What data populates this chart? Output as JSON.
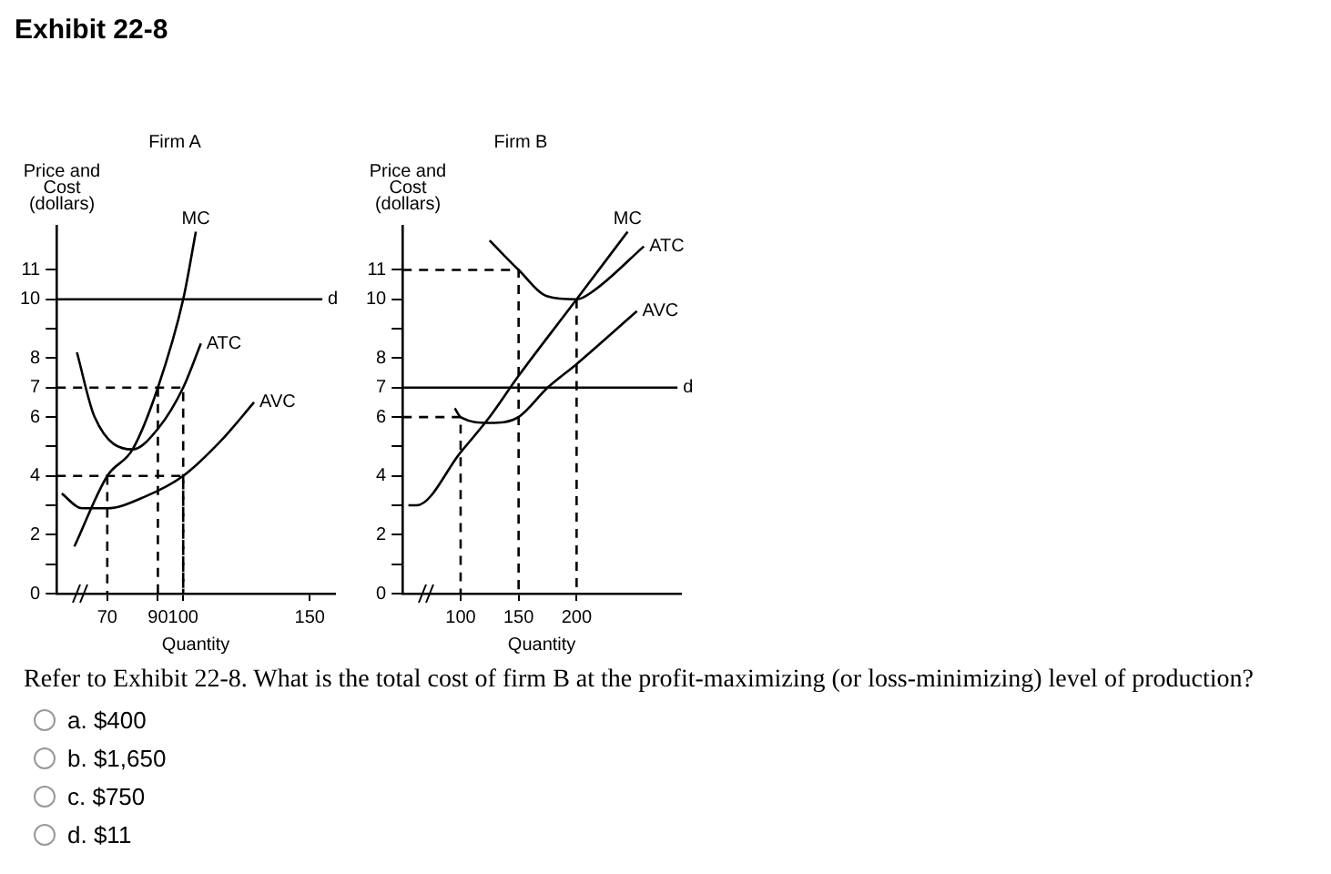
{
  "chart_data": [
    {
      "type": "line",
      "title": "Firm A",
      "xlabel": "Quantity",
      "ylabel": "Price and Cost (dollars)",
      "marker": "none",
      "annotations": [
        "Exhibit 22-8"
      ],
      "xlim": [
        50,
        160
      ],
      "xticks": [
        70,
        90,
        100,
        150
      ],
      "ylim": [
        0,
        12.5
      ],
      "yticks": [
        0,
        {
          "value": 1,
          "label": null
        },
        2,
        {
          "value": 3,
          "label": null
        },
        4,
        {
          "value": 5,
          "label": null
        },
        6,
        7,
        8,
        {
          "value": 9,
          "label": null
        },
        10,
        11
      ],
      "series": [
        {
          "name": "MC",
          "color": "#000000",
          "x": [
            57,
            70,
            80,
            90,
            100,
            105
          ],
          "values": [
            1.6,
            4,
            4.9,
            7,
            10,
            12.3
          ]
        },
        {
          "name": "ATC",
          "color": "#000000",
          "x": [
            58,
            65,
            80,
            90,
            100,
            107
          ],
          "values": [
            8.2,
            6,
            4.9,
            5.6,
            7,
            8.5
          ]
        },
        {
          "name": "AVC",
          "color": "#000000",
          "x": [
            52,
            60,
            70,
            85,
            100,
            115,
            128
          ],
          "values": [
            3.4,
            2.9,
            2.9,
            3.3,
            4,
            5.2,
            6.5
          ]
        },
        {
          "name": "d",
          "color": "#000000",
          "x": [
            50,
            155
          ],
          "values": [
            10,
            10
          ]
        },
        {
          "color": "#000000",
          "line_style": "dashed",
          "x": [
            50,
            100,
            100
          ],
          "values": [
            7,
            7,
            0
          ]
        },
        {
          "color": "#000000",
          "line_style": "dashed",
          "x": [
            50,
            100,
            100
          ],
          "values": [
            4,
            4,
            0
          ]
        },
        {
          "color": "#000000",
          "line_style": "dashed",
          "x": [
            70,
            70
          ],
          "values": [
            4,
            0
          ]
        },
        {
          "color": "#000000",
          "line_style": "dashed",
          "x": [
            90,
            90
          ],
          "values": [
            7,
            0
          ]
        }
      ]
    },
    {
      "type": "line",
      "title": "Firm B",
      "xlabel": "Quantity",
      "ylabel": "Price and Cost (dollars)",
      "marker": "none",
      "annotations": [
        "Refer to Exhibit 22-8. What is the total cost of firm B at the profit-maximizing (or loss-minimizing) level of production?",
        "a. $400",
        "b. $1,650",
        "c. $750",
        "d. $11"
      ],
      "xlim": [
        50,
        290
      ],
      "xticks": [
        100,
        150,
        200
      ],
      "ylim": [
        0,
        12.5
      ],
      "yticks": [
        0,
        {
          "value": 1,
          "label": null
        },
        2,
        {
          "value": 3,
          "label": null
        },
        4,
        {
          "value": 5,
          "label": null
        },
        6,
        7,
        8,
        {
          "value": 9,
          "label": null
        },
        10,
        11
      ],
      "series": [
        {
          "name": "MC",
          "color": "#000000",
          "x": [
            55,
            62,
            100,
            125,
            150,
            200,
            244
          ],
          "values": [
            3,
            3,
            4.8,
            6,
            7.4,
            10,
            12.3
          ]
        },
        {
          "name": "ATC",
          "color": "#000000",
          "x": [
            125,
            150,
            175,
            200,
            215,
            258
          ],
          "values": [
            12,
            11,
            10.1,
            10,
            10.3,
            11.8
          ]
        },
        {
          "name": "AVC",
          "color": "#000000",
          "x": [
            95,
            100,
            125,
            150,
            175,
            200,
            252
          ],
          "values": [
            6.3,
            6,
            5.8,
            6,
            7,
            7.8,
            9.6
          ]
        },
        {
          "name": "d",
          "color": "#000000",
          "x": [
            50,
            287
          ],
          "values": [
            7,
            7
          ]
        },
        {
          "color": "#000000",
          "line_style": "dashed",
          "x": [
            50,
            150,
            150
          ],
          "values": [
            11,
            11,
            0
          ]
        },
        {
          "color": "#000000",
          "line_style": "dashed",
          "x": [
            50,
            100,
            100
          ],
          "values": [
            6,
            6,
            0
          ]
        },
        {
          "color": "#000000",
          "line_style": "dashed",
          "x": [
            200,
            200
          ],
          "values": [
            10,
            0
          ]
        }
      ]
    }
  ]
}
